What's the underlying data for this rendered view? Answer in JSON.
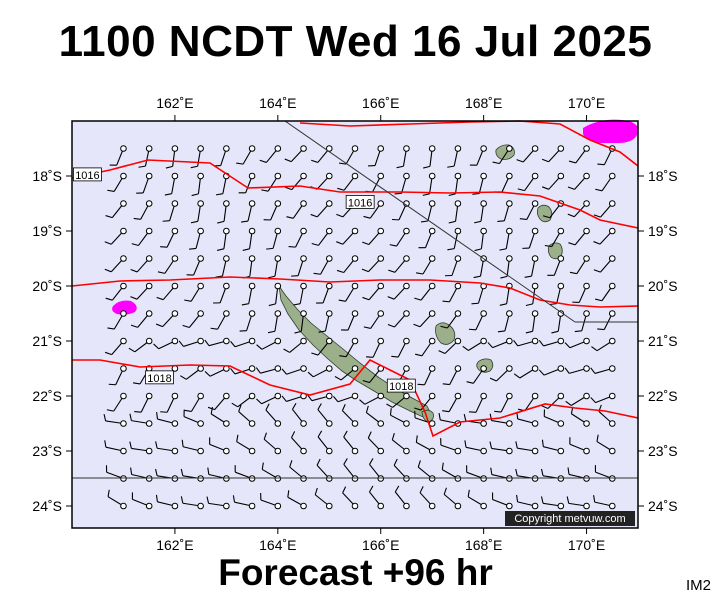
{
  "header": {
    "title": "1100 NCDT Wed 16 Jul 2025"
  },
  "footer": {
    "forecast": "Forecast +96 hr",
    "image_id": "IM2",
    "copyright": "Copyright metvuw.com"
  },
  "map": {
    "lon_range": [
      160.0,
      171.0
    ],
    "lat_range": [
      -24.4,
      -17.0
    ],
    "lon_ticks": [
      {
        "value": 162,
        "label": "162˚E"
      },
      {
        "value": 164,
        "label": "164˚E"
      },
      {
        "value": 166,
        "label": "166˚E"
      },
      {
        "value": 168,
        "label": "168˚E"
      },
      {
        "value": 170,
        "label": "170˚E"
      }
    ],
    "lat_ticks": [
      {
        "value": -18,
        "label": "18˚S"
      },
      {
        "value": -19,
        "label": "19˚S"
      },
      {
        "value": -20,
        "label": "20˚S"
      },
      {
        "value": -21,
        "label": "21˚S"
      },
      {
        "value": -22,
        "label": "22˚S"
      },
      {
        "value": -23,
        "label": "23˚S"
      },
      {
        "value": -24,
        "label": "24˚S"
      }
    ],
    "colors": {
      "ocean": "#e6e6fa",
      "isobar": "#ff0000",
      "land": "#9bb08a",
      "rain": "#ff00ff",
      "barb": "#000000"
    },
    "isobar_labels": [
      {
        "text": "1016",
        "lon": 160.3,
        "lat": -17.98
      },
      {
        "text": "1016",
        "lon": 165.6,
        "lat": -18.48
      },
      {
        "text": "1018",
        "lon": 161.7,
        "lat": -21.67
      },
      {
        "text": "1018",
        "lon": 166.4,
        "lat": -21.82
      }
    ]
  }
}
